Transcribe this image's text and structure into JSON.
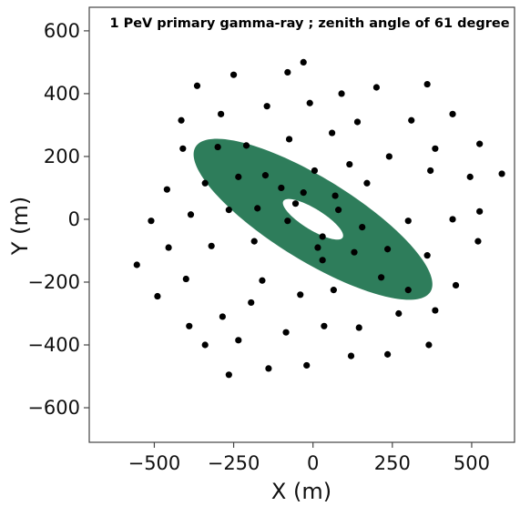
{
  "chart_data": {
    "type": "scatter",
    "title": "1 PeV primary gamma-ray ;  zenith angle of 61 degree",
    "xlabel": "X (m)",
    "ylabel": "Y (m)",
    "xlim": [
      -705,
      635
    ],
    "ylim": [
      -710,
      675
    ],
    "xticks": [
      -500,
      -250,
      0,
      250,
      500
    ],
    "yticks": [
      -600,
      -400,
      -200,
      0,
      200,
      400,
      600
    ],
    "xtick_labels": [
      "−500",
      "−250",
      "0",
      "250",
      "500"
    ],
    "ytick_labels": [
      "−600",
      "−400",
      "−200",
      "0",
      "200",
      "400",
      "600"
    ],
    "grid": false,
    "footprint": {
      "color": "#2e7d5b",
      "center": [
        0,
        0
      ],
      "rotation_deg": -32,
      "outer_semi_axes": [
        200,
        60
      ],
      "inner_semi_axes": [
        200,
        60
      ],
      "outer_scale": 2.18,
      "inner_scale": 0.55
    },
    "point_color": "#000000",
    "points": [
      [
        -30,
        500
      ],
      [
        -250,
        460
      ],
      [
        -80,
        468
      ],
      [
        -365,
        425
      ],
      [
        90,
        400
      ],
      [
        200,
        420
      ],
      [
        360,
        430
      ],
      [
        -145,
        360
      ],
      [
        -10,
        370
      ],
      [
        -290,
        335
      ],
      [
        140,
        310
      ],
      [
        310,
        315
      ],
      [
        440,
        335
      ],
      [
        -415,
        315
      ],
      [
        60,
        275
      ],
      [
        -75,
        255
      ],
      [
        -410,
        225
      ],
      [
        -300,
        230
      ],
      [
        -210,
        235
      ],
      [
        240,
        200
      ],
      [
        385,
        225
      ],
      [
        525,
        240
      ],
      [
        115,
        175
      ],
      [
        370,
        155
      ],
      [
        -235,
        135
      ],
      [
        -150,
        140
      ],
      [
        5,
        155
      ],
      [
        -340,
        115
      ],
      [
        -460,
        95
      ],
      [
        170,
        115
      ],
      [
        495,
        135
      ],
      [
        595,
        145
      ],
      [
        -100,
        100
      ],
      [
        -30,
        85
      ],
      [
        70,
        75
      ],
      [
        -265,
        30
      ],
      [
        -385,
        15
      ],
      [
        -55,
        50
      ],
      [
        80,
        30
      ],
      [
        -175,
        35
      ],
      [
        -510,
        -5
      ],
      [
        300,
        -5
      ],
      [
        440,
        0
      ],
      [
        525,
        25
      ],
      [
        -80,
        -5
      ],
      [
        155,
        -25
      ],
      [
        30,
        -55
      ],
      [
        -455,
        -90
      ],
      [
        -320,
        -85
      ],
      [
        -185,
        -70
      ],
      [
        15,
        -90
      ],
      [
        235,
        -95
      ],
      [
        520,
        -70
      ],
      [
        -555,
        -145
      ],
      [
        30,
        -130
      ],
      [
        130,
        -105
      ],
      [
        360,
        -115
      ],
      [
        -400,
        -190
      ],
      [
        -160,
        -195
      ],
      [
        215,
        -185
      ],
      [
        450,
        -210
      ],
      [
        -490,
        -245
      ],
      [
        -40,
        -240
      ],
      [
        65,
        -225
      ],
      [
        300,
        -225
      ],
      [
        -285,
        -310
      ],
      [
        -195,
        -265
      ],
      [
        270,
        -300
      ],
      [
        385,
        -290
      ],
      [
        -390,
        -340
      ],
      [
        35,
        -340
      ],
      [
        145,
        -345
      ],
      [
        -85,
        -360
      ],
      [
        -340,
        -400
      ],
      [
        -235,
        -385
      ],
      [
        365,
        -400
      ],
      [
        120,
        -435
      ],
      [
        235,
        -430
      ],
      [
        -20,
        -465
      ],
      [
        -140,
        -475
      ],
      [
        -265,
        -495
      ]
    ]
  }
}
